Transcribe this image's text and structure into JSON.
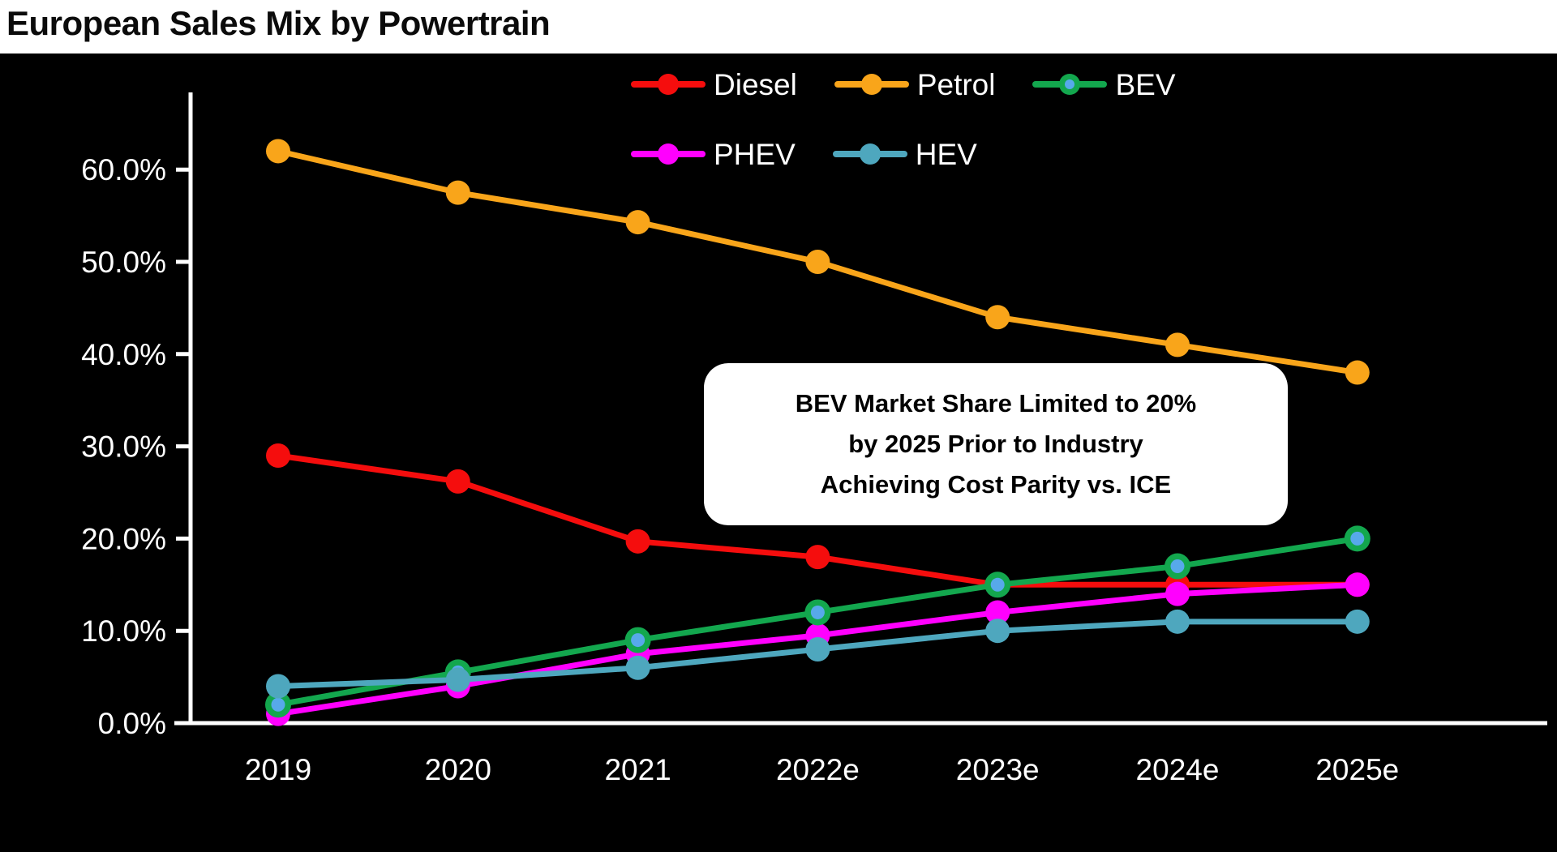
{
  "title": "European Sales Mix by Powertrain",
  "annotation": {
    "lines": [
      "BEV Market Share Limited to 20%",
      "by 2025 Prior to Industry",
      "Achieving Cost Parity vs. ICE"
    ]
  },
  "chart_data": {
    "type": "line",
    "title": "European Sales Mix by Powertrain",
    "categories": [
      "2019",
      "2020",
      "2021",
      "2022e",
      "2023e",
      "2024e",
      "2025e"
    ],
    "series": [
      {
        "name": "Diesel",
        "color": "#f50d0d",
        "values": [
          29.0,
          26.2,
          19.7,
          18.0,
          15.0,
          15.0,
          15.0
        ]
      },
      {
        "name": "Petrol",
        "color": "#f9a51a",
        "values": [
          62.0,
          57.5,
          54.3,
          50.0,
          44.0,
          41.0,
          38.0
        ]
      },
      {
        "name": "BEV",
        "color": "#13a74e",
        "marker_center": "#57a9ea",
        "values": [
          2.0,
          5.5,
          9.0,
          12.0,
          15.0,
          17.0,
          20.0
        ]
      },
      {
        "name": "PHEV",
        "color": "#ff00fe",
        "values": [
          1.0,
          4.0,
          7.5,
          9.5,
          12.0,
          14.0,
          15.0
        ]
      },
      {
        "name": "HEV",
        "color": "#4ea7be",
        "values": [
          4.0,
          4.7,
          6.0,
          8.0,
          10.0,
          11.0,
          11.0
        ]
      }
    ],
    "ytick_labels": [
      "60.0%",
      "50.0%",
      "40.0%",
      "30.0%",
      "20.0%",
      "10.0%",
      "0.0%"
    ],
    "ytick_values": [
      60,
      50,
      40,
      30,
      20,
      10,
      0
    ],
    "ylim": [
      0,
      65
    ],
    "unit": "percent",
    "grid": false,
    "legend_position": "top-right",
    "background_color": "#000000",
    "axis_color": "#ffffff",
    "label_color": "#ffffff"
  }
}
